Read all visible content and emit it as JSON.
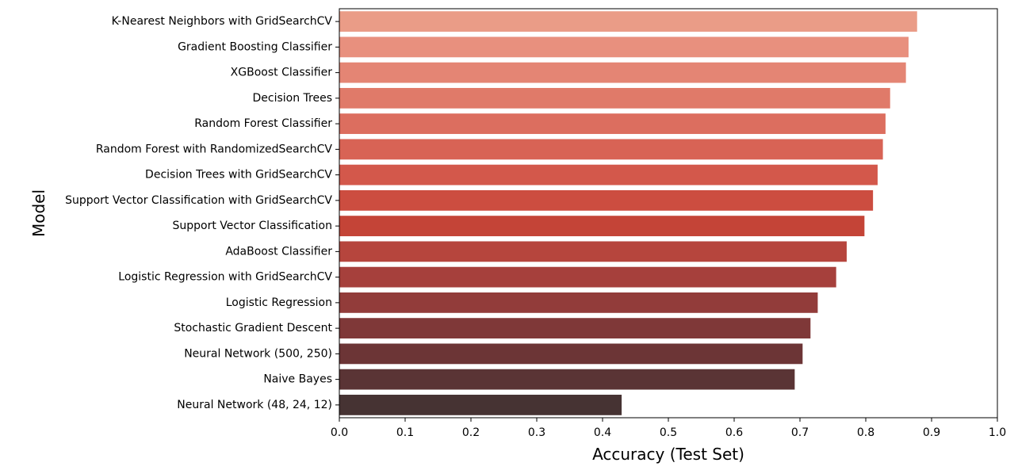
{
  "chart_data": {
    "type": "bar",
    "orientation": "horizontal",
    "title": "",
    "xlabel": "Accuracy (Test Set)",
    "ylabel": "Model",
    "xlim": [
      0.0,
      1.0
    ],
    "xticks": [
      "0.0",
      "0.1",
      "0.2",
      "0.3",
      "0.4",
      "0.5",
      "0.6",
      "0.7",
      "0.8",
      "0.9",
      "1.0"
    ],
    "grid": false,
    "legend": "none",
    "categories": [
      "K-Nearest Neighbors with GridSearchCV",
      "Gradient Boosting Classifier",
      "XGBoost Classifier",
      "Decision Trees",
      "Random Forest Classifier",
      "Random Forest with RandomizedSearchCV",
      "Decision Trees with GridSearchCV",
      "Support Vector Classification with GridSearchCV",
      "Support Vector Classification",
      "AdaBoost Classifier",
      "Logistic Regression with GridSearchCV",
      "Logistic Regression",
      "Stochastic Gradient Descent",
      "Neural Network (500, 250)",
      "Naive Bayes",
      "Neural Network (48, 24, 12)"
    ],
    "values": [
      0.878,
      0.865,
      0.861,
      0.837,
      0.83,
      0.826,
      0.818,
      0.811,
      0.798,
      0.771,
      0.755,
      0.727,
      0.716,
      0.704,
      0.692,
      0.429
    ],
    "colors": [
      "#ea9c87",
      "#e8907e",
      "#e48574",
      "#e07a69",
      "#dc6e5f",
      "#d86355",
      "#d3584b",
      "#cc4d40",
      "#c44437",
      "#b6453d",
      "#a6403c",
      "#923c3a",
      "#7f3838",
      "#6c3536",
      "#5a3435",
      "#463333"
    ]
  }
}
